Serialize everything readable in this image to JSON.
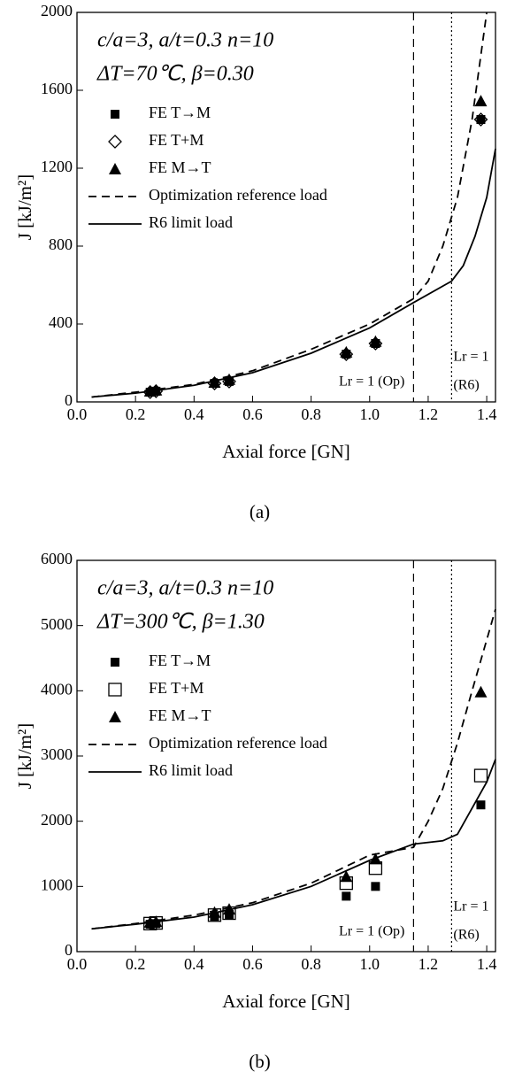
{
  "chart_data": [
    {
      "type": "line",
      "panel_label": "(a)",
      "annotations": [
        "c/a=3, a/t=0.3 n=10",
        "ΔT=70℃, β=0.30"
      ],
      "x_label": "Axial force [GN]",
      "y_label": "J [kJ/m²]",
      "xlim": [
        0,
        1.43
      ],
      "ylim": [
        0,
        2000
      ],
      "xticks": [
        {
          "value": 0,
          "label": "0.0"
        },
        0.2,
        0.4,
        0.6,
        0.8,
        {
          "value": 1,
          "label": "1.0"
        },
        1.2,
        1.4
      ],
      "yticks": [
        0,
        400,
        800,
        1200,
        1600,
        2000
      ],
      "series": [
        {
          "name": "FE T→M",
          "style": "square",
          "color": "#000000",
          "x": [
            0.25,
            0.27,
            0.47,
            0.52,
            0.92,
            1.02,
            1.38
          ],
          "values": [
            50,
            55,
            95,
            105,
            245,
            300,
            1450
          ]
        },
        {
          "name": "FE T+M",
          "style": "diamond",
          "color": "#000000",
          "x": [
            0.25,
            0.27,
            0.47,
            0.52,
            0.92,
            1.02,
            1.38
          ],
          "values": [
            50,
            55,
            95,
            105,
            245,
            300,
            1450
          ]
        },
        {
          "name": "FE M→T",
          "style": "triangle",
          "color": "#000000",
          "x": [
            0.25,
            0.27,
            0.47,
            0.52,
            0.92,
            1.02,
            1.38
          ],
          "values": [
            55,
            60,
            100,
            115,
            255,
            310,
            1545
          ]
        },
        {
          "name": "Optimization reference load",
          "style": "dashed",
          "color": "#000000",
          "x": [
            0.05,
            0.2,
            0.4,
            0.6,
            0.8,
            1.0,
            1.15,
            1.2,
            1.25,
            1.3,
            1.35,
            1.4
          ],
          "values": [
            25,
            50,
            90,
            160,
            270,
            400,
            530,
            620,
            800,
            1050,
            1450,
            2000
          ]
        },
        {
          "name": "R6 limit load",
          "style": "solid",
          "color": "#000000",
          "x": [
            0.05,
            0.2,
            0.4,
            0.6,
            0.8,
            1.0,
            1.15,
            1.28,
            1.32,
            1.36,
            1.4,
            1.43
          ],
          "values": [
            25,
            45,
            85,
            150,
            250,
            380,
            510,
            620,
            700,
            850,
            1050,
            1300
          ]
        }
      ],
      "vlines": [
        {
          "x": 1.15,
          "style": "dashed",
          "label": [
            "Lr = 1 (Op)"
          ]
        },
        {
          "x": 1.28,
          "style": "dotted",
          "label": [
            "Lr = 1",
            "(R6)"
          ]
        }
      ]
    },
    {
      "type": "line",
      "panel_label": "(b)",
      "annotations": [
        "c/a=3, a/t=0.3 n=10",
        "ΔT=300℃, β=1.30"
      ],
      "x_label": "Axial force [GN]",
      "y_label": "J [kJ/m²]",
      "xlim": [
        0,
        1.43
      ],
      "ylim": [
        0,
        6000
      ],
      "xticks": [
        {
          "value": 0,
          "label": "0.0"
        },
        0.2,
        0.4,
        0.6,
        0.8,
        {
          "value": 1,
          "label": "1.0"
        },
        1.2,
        1.4
      ],
      "yticks": [
        0,
        1000,
        2000,
        3000,
        4000,
        5000,
        6000
      ],
      "series": [
        {
          "name": "FE T→M",
          "style": "square",
          "color": "#000000",
          "x": [
            0.25,
            0.27,
            0.47,
            0.52,
            0.92,
            1.02,
            1.38
          ],
          "values": [
            420,
            430,
            540,
            570,
            850,
            1000,
            2250
          ]
        },
        {
          "name": "FE T+M",
          "style": "open-square",
          "color": "#000000",
          "x": [
            0.25,
            0.27,
            0.47,
            0.52,
            0.92,
            1.02,
            1.38
          ],
          "values": [
            430,
            440,
            560,
            590,
            1050,
            1280,
            2700
          ]
        },
        {
          "name": "FE M→T",
          "style": "triangle",
          "color": "#000000",
          "x": [
            0.25,
            0.27,
            0.47,
            0.52,
            0.92,
            1.02,
            1.38
          ],
          "values": [
            450,
            460,
            600,
            650,
            1150,
            1420,
            3980
          ]
        },
        {
          "name": "Optimization reference load",
          "style": "dashed",
          "color": "#000000",
          "x": [
            0.05,
            0.2,
            0.4,
            0.6,
            0.8,
            1.0,
            1.15,
            1.2,
            1.25,
            1.3,
            1.35,
            1.43
          ],
          "values": [
            350,
            430,
            560,
            750,
            1050,
            1480,
            1600,
            2000,
            2500,
            3200,
            4000,
            5250
          ]
        },
        {
          "name": "R6 limit load",
          "style": "solid",
          "color": "#000000",
          "x": [
            0.05,
            0.2,
            0.4,
            0.6,
            0.8,
            1.0,
            1.15,
            1.25,
            1.3,
            1.35,
            1.4,
            1.43
          ],
          "values": [
            350,
            420,
            530,
            720,
            1000,
            1400,
            1650,
            1700,
            1800,
            2200,
            2600,
            2950
          ]
        }
      ],
      "vlines": [
        {
          "x": 1.15,
          "style": "dashed",
          "label": [
            "Lr = 1 (Op)"
          ]
        },
        {
          "x": 1.28,
          "style": "dotted",
          "label": [
            "Lr = 1",
            "(R6)"
          ]
        }
      ]
    }
  ]
}
